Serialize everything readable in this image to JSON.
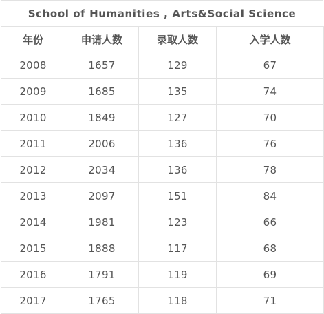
{
  "table": {
    "title": "School  of Humanities , Arts&Social Science",
    "headers": [
      "年份",
      "申请人数",
      "录取人数",
      "入学人数"
    ],
    "rows": [
      [
        "2008",
        "1657",
        "129",
        "67"
      ],
      [
        "2009",
        "1685",
        "135",
        "74"
      ],
      [
        "2010",
        "1849",
        "127",
        "70"
      ],
      [
        "2011",
        "2006",
        "136",
        "76"
      ],
      [
        "2012",
        "2034",
        "136",
        "78"
      ],
      [
        "2013",
        "2097",
        "151",
        "84"
      ],
      [
        "2014",
        "1981",
        "123",
        "66"
      ],
      [
        "2015",
        "1888",
        "117",
        "68"
      ],
      [
        "2016",
        "1791",
        "119",
        "69"
      ],
      [
        "2017",
        "1765",
        "118",
        "71"
      ]
    ]
  }
}
